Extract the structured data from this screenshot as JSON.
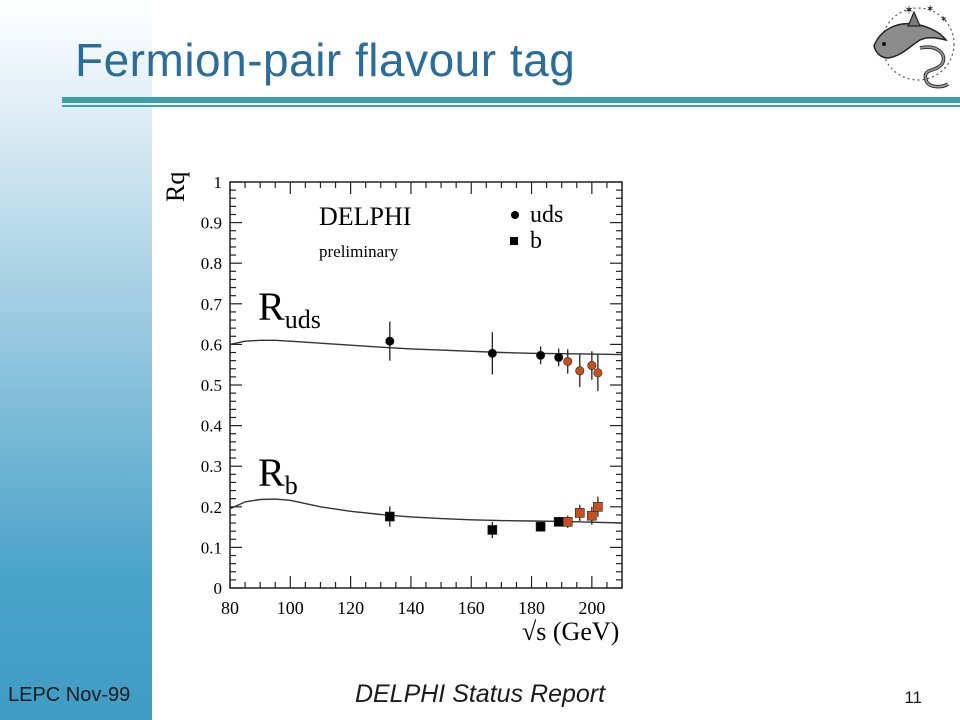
{
  "slide": {
    "title": "Fermion-pair flavour tag",
    "footer_left": "LEPC Nov-99",
    "footer_center": "DELPHI Status Report",
    "page_number": "11",
    "accent_color": "#2a6d9a",
    "rule_color": "#3d9fa6"
  },
  "chart_data": {
    "type": "scatter",
    "title": "DELPHI",
    "subtitle": "preliminary",
    "xlabel": "√s (GeV)",
    "ylabel": "Rq",
    "xlim": [
      80,
      210
    ],
    "ylim": [
      0,
      1
    ],
    "xticks": [
      80,
      100,
      120,
      140,
      160,
      180,
      200
    ],
    "yticks": [
      0,
      0.1,
      0.2,
      0.3,
      0.4,
      0.5,
      0.6,
      0.7,
      0.8,
      0.9,
      1
    ],
    "legend": [
      {
        "label": "uds",
        "marker": "circle"
      },
      {
        "label": "b",
        "marker": "square"
      }
    ],
    "legend_position": "top-right",
    "annotations": [
      {
        "main": "R",
        "sub": "uds"
      },
      {
        "main": "R",
        "sub": "b"
      }
    ],
    "series": [
      {
        "marker": "circle",
        "color": "#000000",
        "x": [
          133,
          167,
          183,
          189
        ],
        "y": [
          0.608,
          0.578,
          0.573,
          0.568
        ],
        "err": [
          0.048,
          0.052,
          0.022,
          0.022
        ]
      },
      {
        "marker": "circle",
        "color": "#c8501a",
        "x": [
          192,
          196,
          200,
          202
        ],
        "y": [
          0.558,
          0.535,
          0.548,
          0.53
        ],
        "err": [
          0.03,
          0.04,
          0.035,
          0.045
        ]
      },
      {
        "marker": "square",
        "color": "#000000",
        "x": [
          133,
          167,
          183,
          189
        ],
        "y": [
          0.176,
          0.143,
          0.151,
          0.163
        ],
        "err": [
          0.025,
          0.02,
          0.012,
          0.01
        ]
      },
      {
        "marker": "square",
        "color": "#c8501a",
        "x": [
          192,
          196,
          200,
          202
        ],
        "y": [
          0.163,
          0.185,
          0.178,
          0.2
        ],
        "err": [
          0.015,
          0.02,
          0.022,
          0.025
        ]
      }
    ],
    "curves": [
      {
        "color": "#333333",
        "x": [
          80,
          85,
          90,
          95,
          100,
          110,
          120,
          130,
          140,
          150,
          160,
          170,
          180,
          190,
          200,
          210
        ],
        "y": [
          0.6,
          0.608,
          0.61,
          0.61,
          0.608,
          0.603,
          0.598,
          0.593,
          0.589,
          0.586,
          0.583,
          0.58,
          0.578,
          0.577,
          0.576,
          0.575
        ]
      },
      {
        "color": "#333333",
        "x": [
          80,
          85,
          90,
          95,
          100,
          110,
          120,
          130,
          140,
          150,
          160,
          170,
          180,
          190,
          200,
          210
        ],
        "y": [
          0.195,
          0.212,
          0.218,
          0.219,
          0.216,
          0.2,
          0.189,
          0.181,
          0.175,
          0.171,
          0.168,
          0.166,
          0.165,
          0.164,
          0.162,
          0.16
        ]
      }
    ]
  }
}
